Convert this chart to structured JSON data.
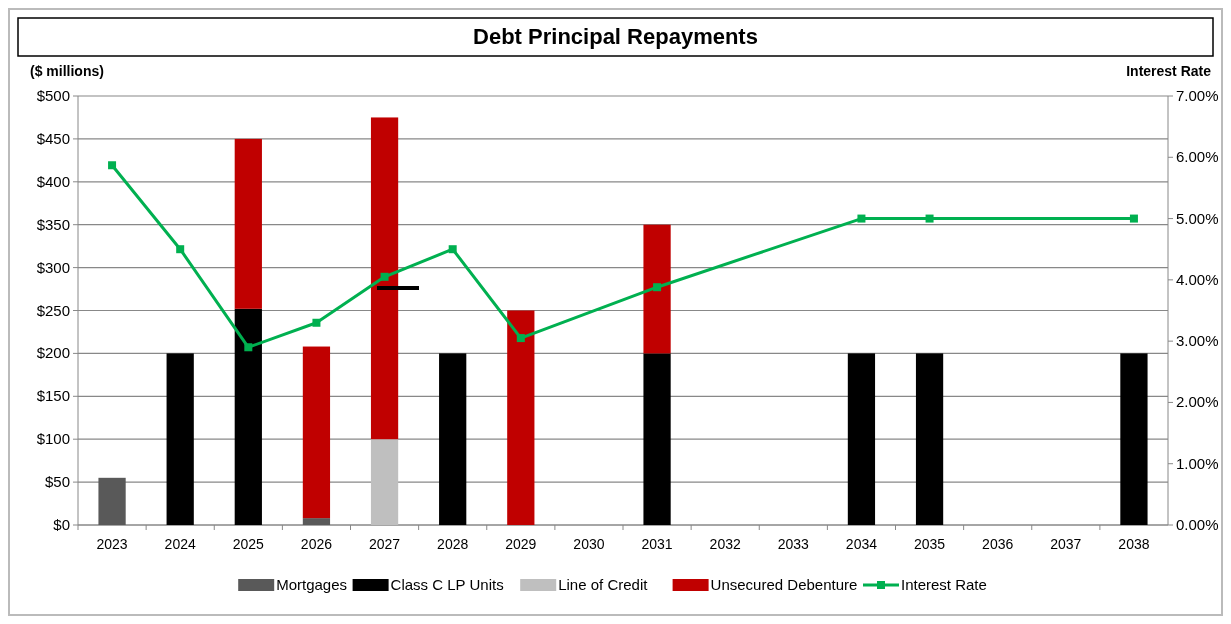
{
  "chart_data": {
    "type": "bar",
    "title": "Debt Principal Repayments",
    "ylabel": "($ millions)",
    "y2label": "Interest Rate",
    "categories": [
      "2023",
      "2024",
      "2025",
      "2026",
      "2027",
      "2028",
      "2029",
      "2030",
      "2031",
      "2032",
      "2033",
      "2034",
      "2035",
      "2036",
      "2037",
      "2038"
    ],
    "stacked": true,
    "series": [
      {
        "name": "Mortgages",
        "color": "#595959",
        "values": [
          55,
          null,
          null,
          8,
          null,
          null,
          null,
          null,
          null,
          null,
          null,
          null,
          null,
          null,
          null,
          null
        ]
      },
      {
        "name": "Class C LP Units",
        "color": "#000000",
        "values": [
          null,
          200,
          252,
          null,
          null,
          200,
          null,
          null,
          200,
          null,
          null,
          200,
          200,
          null,
          null,
          200
        ]
      },
      {
        "name": "Line of Credit",
        "color": "#bfbfbf",
        "values": [
          null,
          null,
          null,
          null,
          100,
          null,
          null,
          null,
          null,
          null,
          null,
          null,
          null,
          null,
          null,
          null
        ]
      },
      {
        "name": "Unsecured Debenture",
        "color": "#c00000",
        "values": [
          null,
          null,
          198,
          200,
          375,
          null,
          250,
          null,
          150,
          null,
          null,
          null,
          null,
          null,
          null,
          null
        ]
      },
      {
        "name": "Interest Rate",
        "type": "line",
        "axis": "y2",
        "marker": "square",
        "color": "#00b050",
        "values": [
          5.87,
          4.5,
          2.9,
          3.3,
          4.05,
          4.5,
          3.05,
          null,
          3.88,
          null,
          null,
          5.0,
          5.0,
          null,
          null,
          5.0
        ]
      }
    ],
    "ylim": [
      0,
      500
    ],
    "yticks": [
      {
        "value": 0,
        "label": "$0"
      },
      {
        "value": 50,
        "label": "$50"
      },
      {
        "value": 100,
        "label": "$100"
      },
      {
        "value": 150,
        "label": "$150"
      },
      {
        "value": 200,
        "label": "$200"
      },
      {
        "value": 250,
        "label": "$250"
      },
      {
        "value": 300,
        "label": "$300"
      },
      {
        "value": 350,
        "label": "$350"
      },
      {
        "value": 400,
        "label": "$400"
      },
      {
        "value": 450,
        "label": "$450"
      },
      {
        "value": 500,
        "label": "$500"
      }
    ],
    "y2lim": [
      0,
      7
    ],
    "y2ticks": [
      {
        "value": 0,
        "label": "0.00%"
      },
      {
        "value": 1,
        "label": "1.00%"
      },
      {
        "value": 2,
        "label": "2.00%"
      },
      {
        "value": 3,
        "label": "3.00%"
      },
      {
        "value": 4,
        "label": "4.00%"
      },
      {
        "value": 5,
        "label": "5.00%"
      },
      {
        "value": 6,
        "label": "6.00%"
      },
      {
        "value": 7,
        "label": "7.00%"
      }
    ],
    "grid": "y",
    "legend": "bottom"
  }
}
